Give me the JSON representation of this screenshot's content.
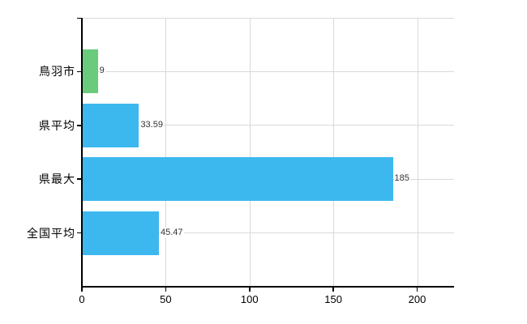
{
  "chart_data": {
    "type": "bar",
    "orientation": "horizontal",
    "title": "",
    "categories": [
      "鳥羽市",
      "県平均",
      "県最大",
      "全国平均"
    ],
    "values": [
      9,
      33.59,
      185,
      45.47
    ],
    "value_labels": [
      "9",
      "33.59",
      "185",
      "45.47"
    ],
    "bar_colors": [
      "#69cb7b",
      "#3db8ef",
      "#3db8ef",
      "#3db8ef"
    ],
    "xlabel": "",
    "ylabel": "",
    "xlim": [
      0,
      222
    ],
    "x_ticks": [
      0,
      50,
      100,
      150,
      200
    ],
    "x_tick_labels": [
      "0",
      "50",
      "100",
      "150",
      "200"
    ],
    "grid": true,
    "legend": "none"
  },
  "colors": {
    "background": "#ffffff",
    "grid": "#d9d9d9",
    "axis": "#000000",
    "text": "#000000",
    "value_label_text": "#333333",
    "bar_blue": "#3db8ef",
    "bar_green": "#69cb7b"
  }
}
